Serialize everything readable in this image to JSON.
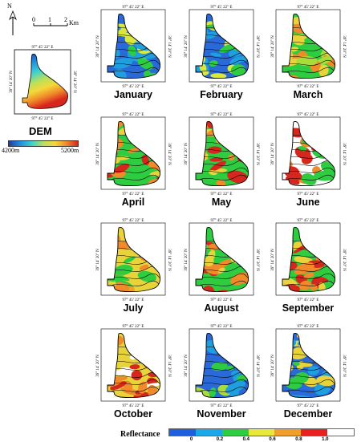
{
  "scale": {
    "north": "N",
    "ticks": [
      "0",
      "1",
      "2"
    ],
    "unit": "Km"
  },
  "dem": {
    "title": "DEM",
    "lon_label": "97° 45′ 22″ E",
    "lat_label": "39° 14′ 20″ N",
    "min_label": "4200m",
    "max_label": "5200m",
    "colors": [
      "#1f3ea8",
      "#1e90e0",
      "#3fd0d0",
      "#b8e05a",
      "#f5d83a",
      "#f08a2a",
      "#d7261e"
    ]
  },
  "coords": {
    "lon": "97° 45′ 22″ E",
    "lat": "39° 14′ 20″ N"
  },
  "months": [
    {
      "name": "January",
      "palette": [
        "#2a6ad8",
        "#1e9fe0",
        "#2ecc40",
        "#d9e83a"
      ]
    },
    {
      "name": "February",
      "palette": [
        "#2a6ad8",
        "#1e9fe0",
        "#2ecc40",
        "#d9e83a"
      ]
    },
    {
      "name": "March",
      "palette": [
        "#2ecc40",
        "#a8dc3a",
        "#e8d43a",
        "#f08a2a"
      ]
    },
    {
      "name": "April",
      "palette": [
        "#2ecc40",
        "#e8d43a",
        "#f08a2a",
        "#d7261e"
      ]
    },
    {
      "name": "May",
      "palette": [
        "#2ecc40",
        "#e8d43a",
        "#f08a2a",
        "#d7261e"
      ]
    },
    {
      "name": "June",
      "palette": [
        "#ffffff",
        "#d7261e",
        "#f08a2a",
        "#2ecc40"
      ]
    },
    {
      "name": "July",
      "palette": [
        "#e8d43a",
        "#f0a02a",
        "#f08a2a",
        "#2ecc40"
      ]
    },
    {
      "name": "August",
      "palette": [
        "#2ecc40",
        "#e8d43a",
        "#f08a2a",
        "#d7261e"
      ]
    },
    {
      "name": "September",
      "palette": [
        "#2ecc40",
        "#e8d43a",
        "#f08a2a",
        "#d7261e"
      ]
    },
    {
      "name": "October",
      "palette": [
        "#e8d43a",
        "#f08a2a",
        "#d7261e",
        "#ffffff"
      ]
    },
    {
      "name": "November",
      "palette": [
        "#2a6ad8",
        "#1e9fe0",
        "#2ecc40",
        "#a8dc3a"
      ]
    },
    {
      "name": "December",
      "palette": [
        "#2a6ad8",
        "#1e9fe0",
        "#2ecc40",
        "#e8d43a"
      ]
    }
  ],
  "legend": {
    "title": "Reflectance",
    "ticks": [
      "0",
      "0.2",
      "0.4",
      "0.6",
      "0.8",
      "1.0"
    ],
    "colors": [
      "#1e5fe0",
      "#1aa8e8",
      "#2ecc40",
      "#e8e83a",
      "#f0a02a",
      "#e8201e",
      "#ffffff"
    ]
  }
}
